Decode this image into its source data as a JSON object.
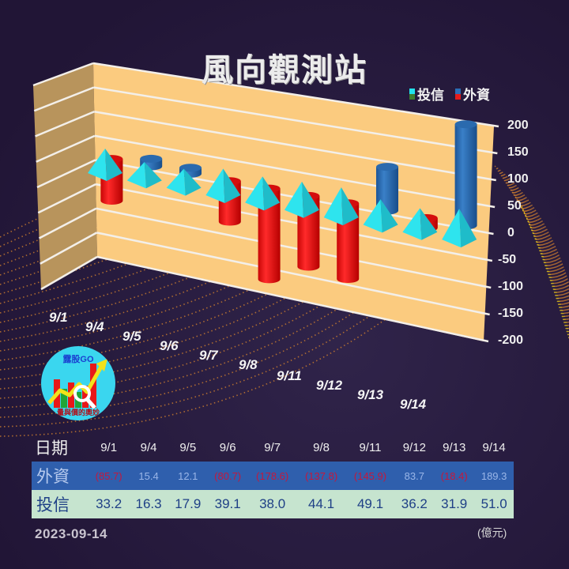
{
  "title": "風向觀測站",
  "legend": [
    {
      "label": "投信",
      "colors": [
        "#22e3ee",
        "#3d7d2e"
      ]
    },
    {
      "label": "外資",
      "colors": [
        "#2a6db5",
        "#e41b1b"
      ]
    }
  ],
  "colors": {
    "background": "#211536",
    "back_wall": "#fbcb7f",
    "side_wall": "#b8945c",
    "gridline": "#f3efe9",
    "foreign_positive": "#2a6db5",
    "foreign_negative": "#ee1111",
    "trust": "#2ee4ee",
    "floor_dots": "#c6792f"
  },
  "y_axis": {
    "ticks": [
      "200",
      "150",
      "100",
      "50",
      "0",
      "-50",
      "-100",
      "-150",
      "-200"
    ]
  },
  "chart_data": {
    "type": "bar",
    "title": "風向觀測站",
    "subtitle": "",
    "xlabel": "日期",
    "ylabel": "億元",
    "ylim": [
      -200,
      200
    ],
    "yticks": [
      -200,
      -150,
      -100,
      -50,
      0,
      50,
      100,
      150,
      200
    ],
    "grid": true,
    "legend_position": "top-right",
    "categories": [
      "9/1",
      "9/4",
      "9/5",
      "9/6",
      "9/7",
      "9/8",
      "9/11",
      "9/12",
      "9/13",
      "9/14"
    ],
    "series": [
      {
        "name": "外資",
        "shape": "cylinder",
        "values": [
          -85.7,
          15.4,
          12.1,
          -80.7,
          -178.6,
          -137.8,
          -145.9,
          83.7,
          -18.4,
          189.3
        ]
      },
      {
        "name": "投信",
        "shape": "pyramid",
        "values": [
          33.2,
          16.3,
          17.9,
          39.1,
          38.0,
          44.1,
          49.1,
          36.2,
          31.9,
          51.0
        ]
      }
    ],
    "annotations": [
      "2023-09-14",
      "(億元)"
    ]
  },
  "table": {
    "header_label": "日期",
    "dates": [
      "9/1",
      "9/4",
      "9/5",
      "9/6",
      "9/7",
      "9/8",
      "9/11",
      "9/12",
      "9/13",
      "9/14"
    ],
    "rows": [
      {
        "label": "外資",
        "cells": [
          "(85.7)",
          "15.4",
          "12.1",
          "(80.7)",
          "(178.6)",
          "(137.8)",
          "(145.9)",
          "83.7",
          "(18.4)",
          "189.3"
        ]
      },
      {
        "label": "投信",
        "cells": [
          "33.2",
          "16.3",
          "17.9",
          "39.1",
          "38.0",
          "44.1",
          "49.1",
          "36.2",
          "31.9",
          "51.0"
        ]
      }
    ]
  },
  "logo": {
    "brand": "露股GO",
    "tagline": "量與價的奧妙"
  },
  "footer": {
    "date": "2023-09-14",
    "unit": "(億元)"
  }
}
